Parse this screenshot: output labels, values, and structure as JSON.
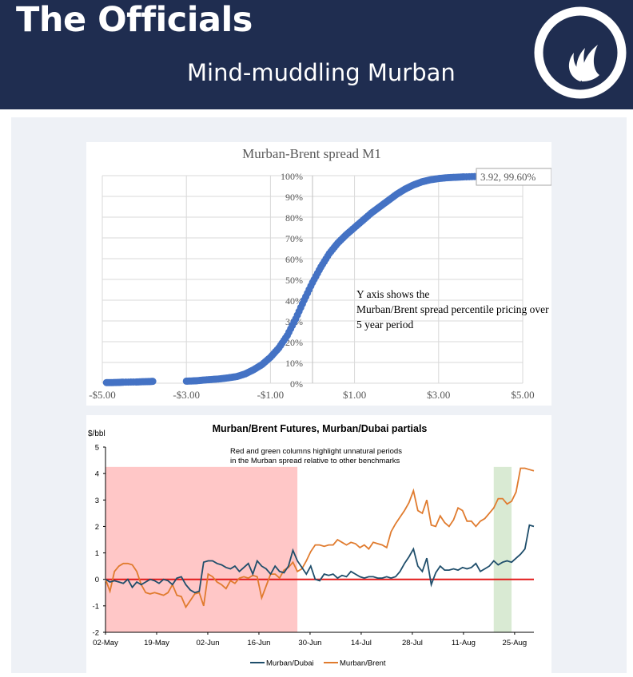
{
  "header": {
    "brand": "The Officials",
    "subtitle": "Mind-muddling Murban",
    "background_color": "#1f2d50",
    "logo_icon": "flame-circle-icon"
  },
  "chart_data": [
    {
      "type": "scatter",
      "title": "Murban-Brent spread M1",
      "x_tick_labels": [
        "-$5.00",
        "-$3.00",
        "-$1.00",
        "$1.00",
        "$3.00",
        "$5.00"
      ],
      "y_tick_labels": [
        "0%",
        "10%",
        "20%",
        "30%",
        "40%",
        "50%",
        "60%",
        "70%",
        "80%",
        "90%",
        "100%"
      ],
      "xlim": [
        -5,
        5
      ],
      "ylim": [
        0,
        100
      ],
      "grid": true,
      "point_color": "#4472c4",
      "annotation": "Y axis shows the Murban/Brent spread percentile pricing over a 5 year period",
      "callout_label": "3.92, 99.60%",
      "points": [
        [
          -4.9,
          0.3
        ],
        [
          -4.75,
          0.3
        ],
        [
          -4.6,
          0.4
        ],
        [
          -4.5,
          0.5
        ],
        [
          -4.2,
          0.6
        ],
        [
          -4.05,
          0.7
        ],
        [
          -3.9,
          0.8
        ],
        [
          -3.8,
          0.9
        ],
        [
          -3.0,
          1.0
        ],
        [
          -2.85,
          1.1
        ],
        [
          -2.75,
          1.2
        ],
        [
          -2.6,
          1.5
        ],
        [
          -2.4,
          1.8
        ],
        [
          -2.2,
          2.1
        ],
        [
          -2.0,
          2.6
        ],
        [
          -1.8,
          3.2
        ],
        [
          -1.6,
          4.5
        ],
        [
          -1.4,
          6.5
        ],
        [
          -1.2,
          9
        ],
        [
          -1.0,
          12.5
        ],
        [
          -0.8,
          17
        ],
        [
          -0.6,
          23
        ],
        [
          -0.4,
          31
        ],
        [
          -0.2,
          40
        ],
        [
          0.0,
          48.5
        ],
        [
          0.2,
          56
        ],
        [
          0.4,
          62.5
        ],
        [
          0.6,
          67.5
        ],
        [
          0.8,
          71.5
        ],
        [
          1.0,
          75
        ],
        [
          1.2,
          78.5
        ],
        [
          1.4,
          82
        ],
        [
          1.6,
          85
        ],
        [
          1.8,
          88
        ],
        [
          2.0,
          91
        ],
        [
          2.2,
          93.5
        ],
        [
          2.4,
          95.5
        ],
        [
          2.6,
          97
        ],
        [
          2.8,
          98
        ],
        [
          3.0,
          98.6
        ],
        [
          3.2,
          99
        ],
        [
          3.4,
          99.2
        ],
        [
          3.6,
          99.4
        ],
        [
          3.92,
          99.6
        ]
      ]
    },
    {
      "type": "line",
      "title": "Murban/Brent Futures, Murban/Dubai partials",
      "ylabel": "$/bbl",
      "ylim": [
        -2,
        5
      ],
      "y_tick_labels": [
        "-2",
        "-1",
        "0",
        "1",
        "2",
        "3",
        "4",
        "5"
      ],
      "x_tick_labels": [
        "02-May",
        "19-May",
        "02-Jun",
        "16-Jun",
        "30-Jun",
        "14-Jul",
        "28-Jul",
        "11-Aug",
        "25-Aug"
      ],
      "annotation": "Red and green columns highlight unnatural periods in the Murban spread relative to other benchmarks",
      "highlights": [
        {
          "color": "#ffc7c7",
          "start_index": 0,
          "end_index": 43
        },
        {
          "color": "#d9ead3",
          "start_index": 87,
          "end_index": 91
        }
      ],
      "zero_line_color": "#e21a1a",
      "series": [
        {
          "name": "Murban/Dubai",
          "color": "#1f4e6b",
          "values": [
            0,
            -0.1,
            -0.05,
            -0.1,
            -0.15,
            0,
            -0.3,
            -0.1,
            -0.2,
            -0.1,
            0,
            -0.05,
            -0.15,
            0,
            -0.05,
            -0.2,
            0.05,
            0.1,
            -0.2,
            -0.4,
            -0.5,
            -0.45,
            0.65,
            0.7,
            0.7,
            0.6,
            0.55,
            0.45,
            0.4,
            0.5,
            0.3,
            0.45,
            0.6,
            0.2,
            0.7,
            0.5,
            0.4,
            0.2,
            0.5,
            0.3,
            0.25,
            0.5,
            1.1,
            0.7,
            0.45,
            0.2,
            0.5,
            0,
            -0.05,
            0.2,
            0.15,
            0.2,
            0.05,
            0.15,
            0.1,
            0.3,
            0.2,
            0.1,
            0.05,
            0.1,
            0.1,
            0.05,
            0.05,
            0.1,
            0.05,
            0.1,
            0.3,
            0.6,
            0.85,
            1.15,
            0.5,
            0.3,
            0.8,
            -0.2,
            0.25,
            0.5,
            0.35,
            0.35,
            0.4,
            0.35,
            0.45,
            0.4,
            0.45,
            0.6,
            0.3,
            0.4,
            0.5,
            0.7,
            0.55,
            0.65,
            0.7,
            0.65,
            0.8,
            0.95,
            1.15,
            2.05,
            2.0
          ]
        },
        {
          "name": "Murban/Brent",
          "color": "#e07b2e",
          "values": [
            0,
            -0.45,
            0.3,
            0.5,
            0.6,
            0.6,
            0.55,
            0.3,
            -0.2,
            -0.5,
            -0.55,
            -0.5,
            -0.55,
            -0.6,
            -0.5,
            -0.2,
            -0.6,
            -0.65,
            -1.05,
            -0.8,
            -0.55,
            -0.5,
            -1.0,
            0.2,
            0.1,
            -0.1,
            -0.2,
            -0.35,
            -0.05,
            -0.15,
            0.05,
            0.1,
            0.05,
            0.15,
            0.1,
            -0.7,
            -0.25,
            0.2,
            0.2,
            0.05,
            0.35,
            0.45,
            0.65,
            0.3,
            0.4,
            0.7,
            1.05,
            1.3,
            1.3,
            1.25,
            1.3,
            1.3,
            1.5,
            1.4,
            1.3,
            1.4,
            1.35,
            1.2,
            1.3,
            1.15,
            1.4,
            1.35,
            1.3,
            1.2,
            1.8,
            2.1,
            2.35,
            2.6,
            2.9,
            3.35,
            2.6,
            2.5,
            3.0,
            2.05,
            2.0,
            2.4,
            2.15,
            2.0,
            2.25,
            2.7,
            2.6,
            2.2,
            2.2,
            2.0,
            2.2,
            2.3,
            2.5,
            2.7,
            3.05,
            3.05,
            2.85,
            2.95,
            3.3,
            4.2,
            4.2,
            4.15,
            4.1
          ]
        }
      ]
    }
  ]
}
